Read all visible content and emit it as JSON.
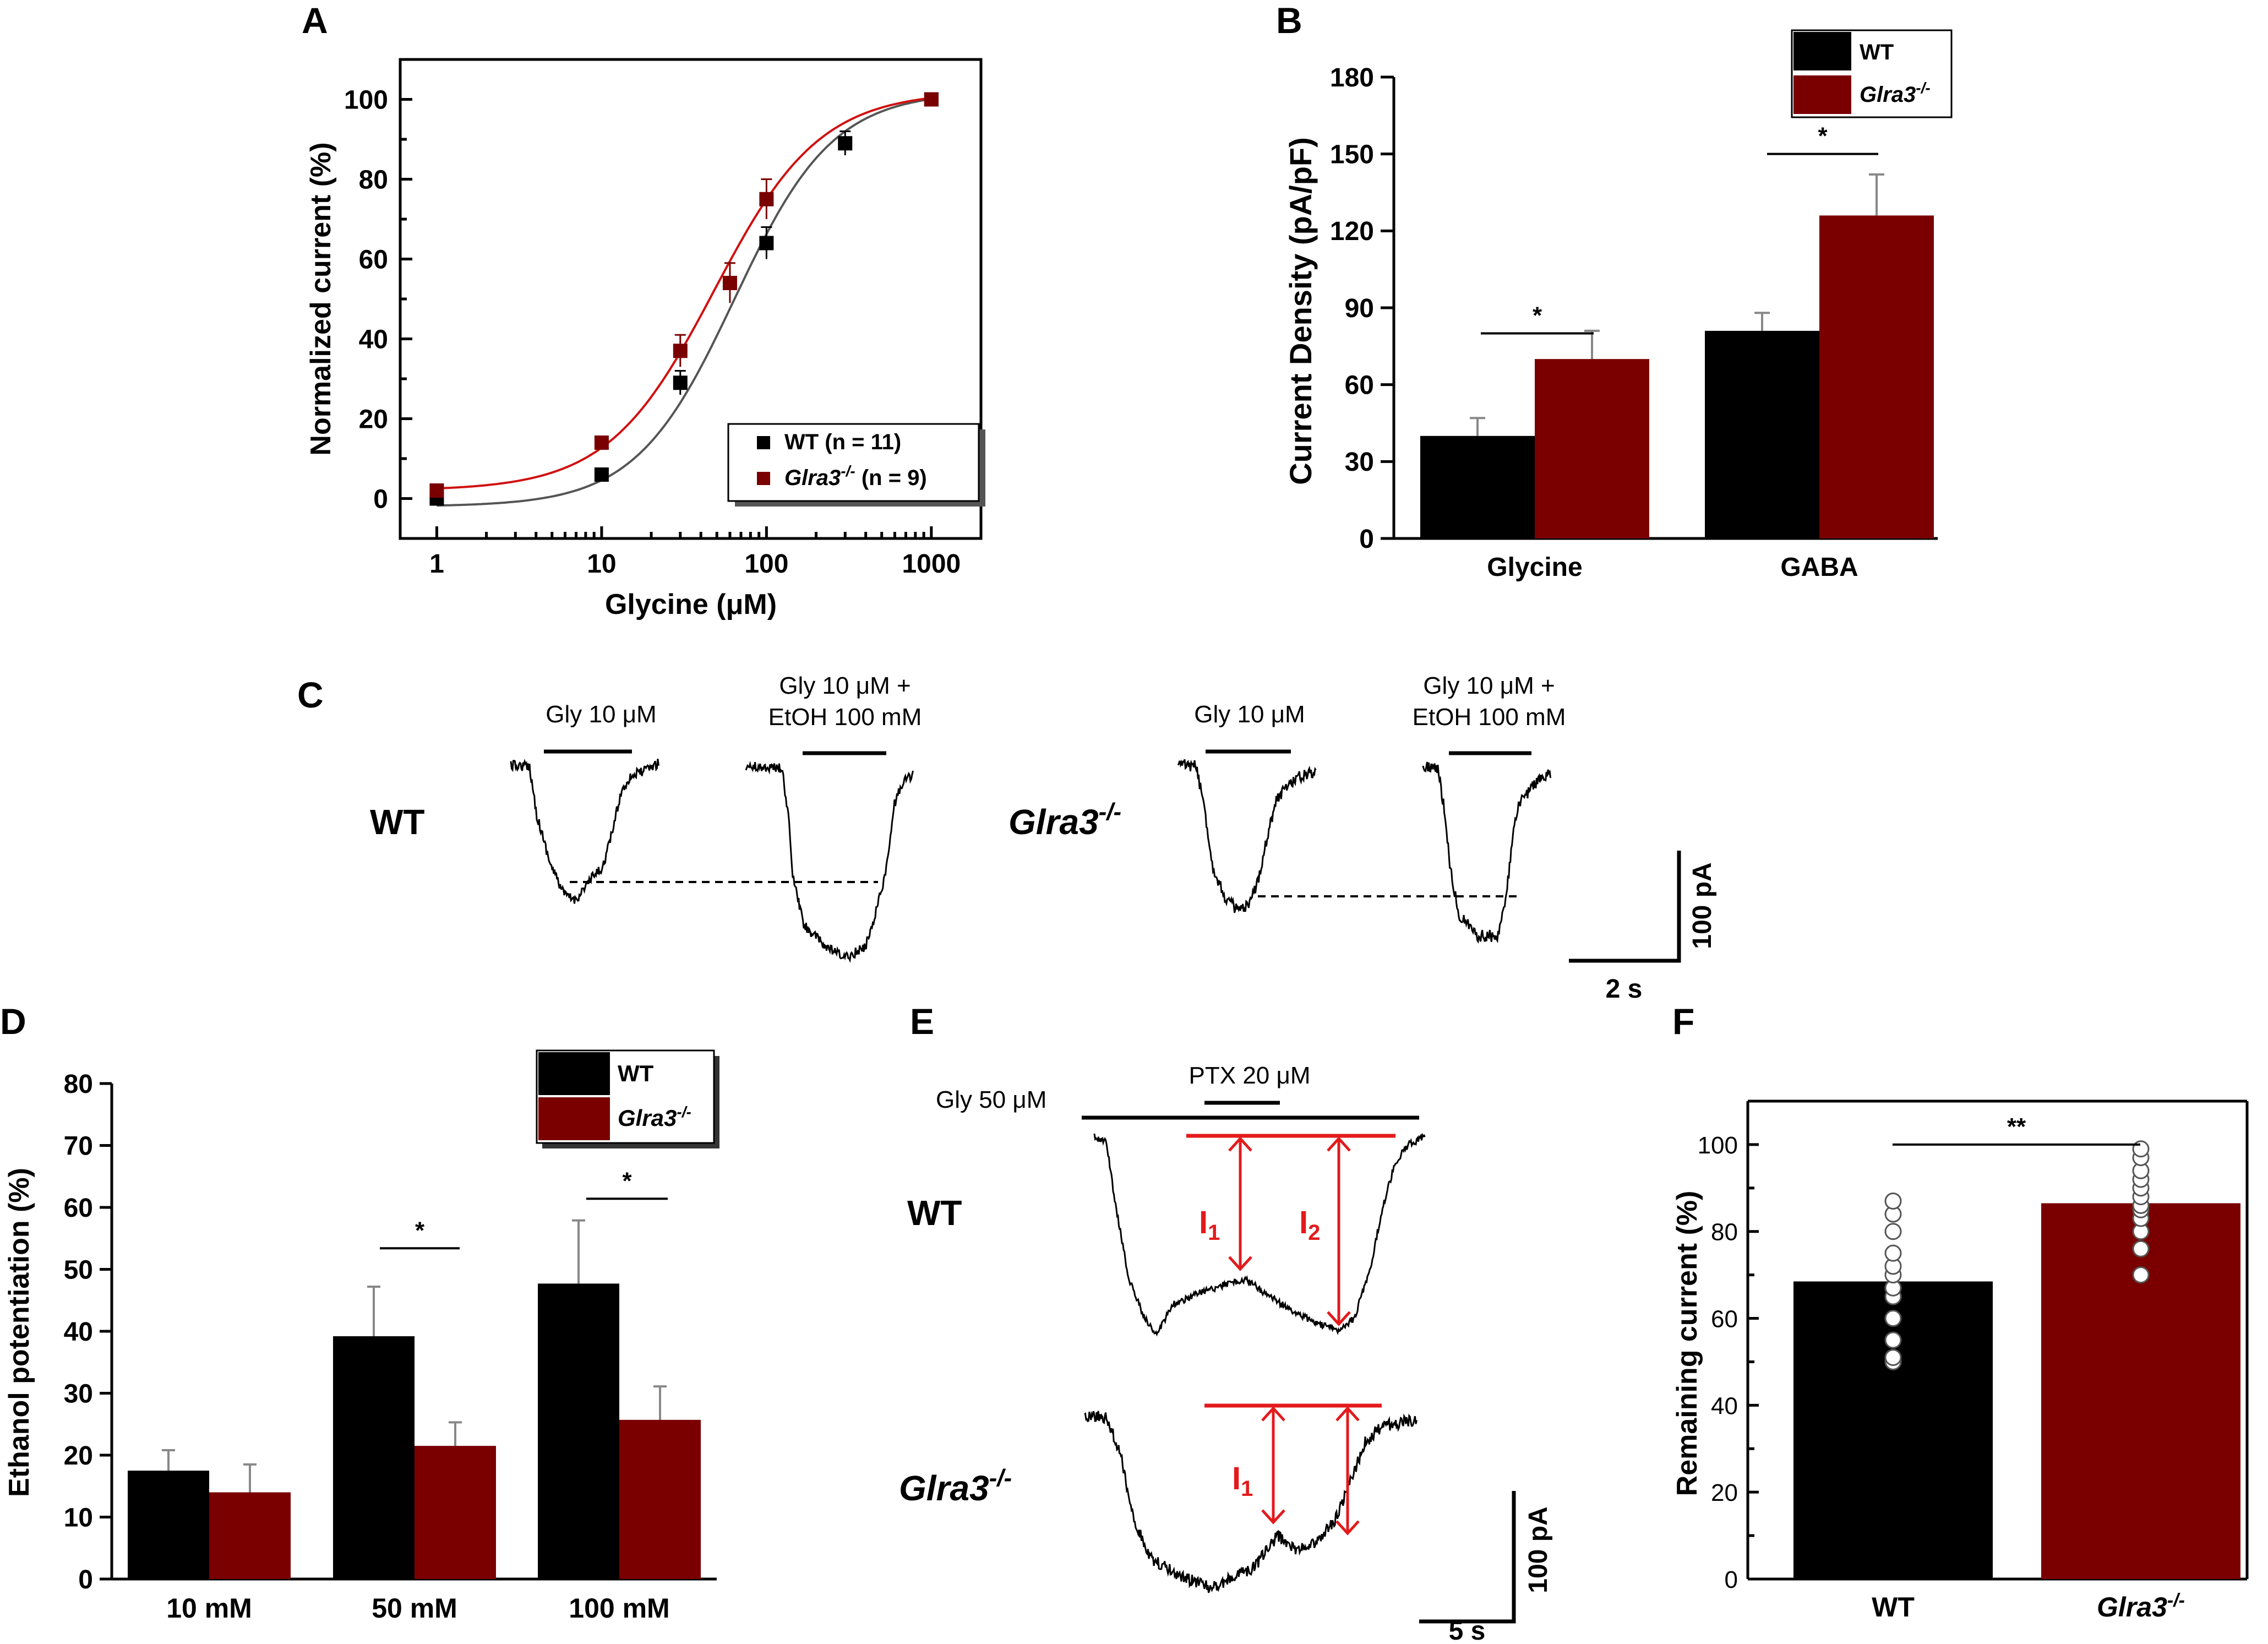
{
  "colors": {
    "wt": "#000000",
    "ko": "#7a0000",
    "red": "#e31a1c",
    "fit_wt": "#555555",
    "fit_ko": "#d01010"
  },
  "panels": {
    "a": "A",
    "b": "B",
    "c": "C",
    "d": "D",
    "e": "E",
    "f": "F"
  },
  "chart_data": [
    {
      "panel": "A",
      "type": "scatter",
      "xscale": "log",
      "xlabel": "Glycine (μM)",
      "ylabel": "Normalized current (%)",
      "xlim": [
        0.6,
        2000
      ],
      "ylim": [
        -10,
        110
      ],
      "xticks": [
        "1",
        "10",
        "100",
        "1000"
      ],
      "yticks": [
        "0",
        "20",
        "40",
        "60",
        "80",
        "100"
      ],
      "legend": {
        "placement": "bottom-right"
      },
      "series": [
        {
          "name": "WT",
          "legend": "WT (n = 11)",
          "x": [
            1,
            10,
            30,
            100,
            300,
            1000
          ],
          "y": [
            0,
            6,
            29,
            64,
            89,
            100
          ],
          "err": [
            0,
            1,
            3,
            4,
            3,
            0
          ],
          "fit": {
            "ec50": 64,
            "hill": 1.45,
            "bottom": -2,
            "top": 102
          }
        },
        {
          "name": "Glra3-/-",
          "legend": "Glra3-/- (n = 9)",
          "x": [
            1,
            10,
            30,
            60,
            100,
            1000
          ],
          "y": [
            2,
            14,
            37,
            54,
            75,
            100
          ],
          "err": [
            0,
            1.5,
            4,
            5,
            5,
            0
          ],
          "fit": {
            "ec50": 48,
            "hill": 1.35,
            "bottom": 2,
            "top": 102
          }
        }
      ]
    },
    {
      "panel": "B",
      "type": "bar",
      "ylabel": "Current Density (pA/pF)",
      "ylim": [
        0,
        180
      ],
      "yticks": [
        "0",
        "30",
        "60",
        "90",
        "120",
        "150",
        "180"
      ],
      "categories": [
        "Glycine",
        "GABA"
      ],
      "legend": {
        "placement": "top-right"
      },
      "series": [
        {
          "name": "WT",
          "values": [
            40,
            81
          ],
          "err": [
            7,
            7
          ]
        },
        {
          "name": "Glra3-/-",
          "values": [
            70,
            126
          ],
          "err": [
            11,
            16
          ]
        }
      ],
      "significance": [
        "*",
        "*"
      ]
    },
    {
      "panel": "D",
      "type": "bar",
      "ylabel": "Ethanol potentiation (%)",
      "ylim": [
        0,
        80
      ],
      "yticks": [
        "0",
        "10",
        "20",
        "30",
        "40",
        "50",
        "60",
        "70",
        "80"
      ],
      "categories": [
        "10 mM",
        "50 mM",
        "100 mM"
      ],
      "legend": {
        "placement": "top-right"
      },
      "series": [
        {
          "name": "WT",
          "values": [
            17.5,
            39.2,
            47.7
          ],
          "err": [
            3.3,
            8,
            10.2
          ]
        },
        {
          "name": "Glra3-/-",
          "values": [
            14,
            21.5,
            25.7
          ],
          "err": [
            4.5,
            3.8,
            5.4
          ]
        }
      ],
      "significance": [
        "",
        "*",
        "*"
      ]
    },
    {
      "panel": "F",
      "type": "bar",
      "ylabel": "Remaining current (%)",
      "ylim": [
        0,
        110
      ],
      "yticks": [
        "0",
        "20",
        "40",
        "60",
        "80",
        "100"
      ],
      "categories": [
        "WT",
        "Glra3-/-"
      ],
      "values": [
        68.5,
        86.5
      ],
      "points": [
        [
          50,
          51,
          55,
          60,
          65,
          67,
          70,
          72,
          75,
          80,
          84,
          87
        ],
        [
          70,
          76,
          80,
          83,
          85,
          86,
          88,
          90,
          92,
          94,
          97,
          99
        ]
      ],
      "significance": "**"
    }
  ],
  "legend_labels": {
    "wt": "WT",
    "ko_base": "Glra3",
    "ko_sup": "-/-"
  },
  "panel_c": {
    "row_wt": "WT",
    "row_ko_base": "Glra3",
    "row_ko_sup": "-/-",
    "stim1": "Gly 10 μM",
    "stim2_line1": "Gly 10 μM +",
    "stim2_line2": "EtOH 100 mM",
    "scale_y": "100 pA",
    "scale_x": "2 s"
  },
  "panel_e": {
    "gly": "Gly 50 μM",
    "ptx": "PTX 20 μM",
    "row_wt": "WT",
    "row_ko_base": "Glra3",
    "row_ko_sup": "-/-",
    "i1": "I",
    "i1_sub": "1",
    "i2": "I",
    "i2_sub": "2",
    "scale_y": "100 pA",
    "scale_x": "5 s"
  }
}
